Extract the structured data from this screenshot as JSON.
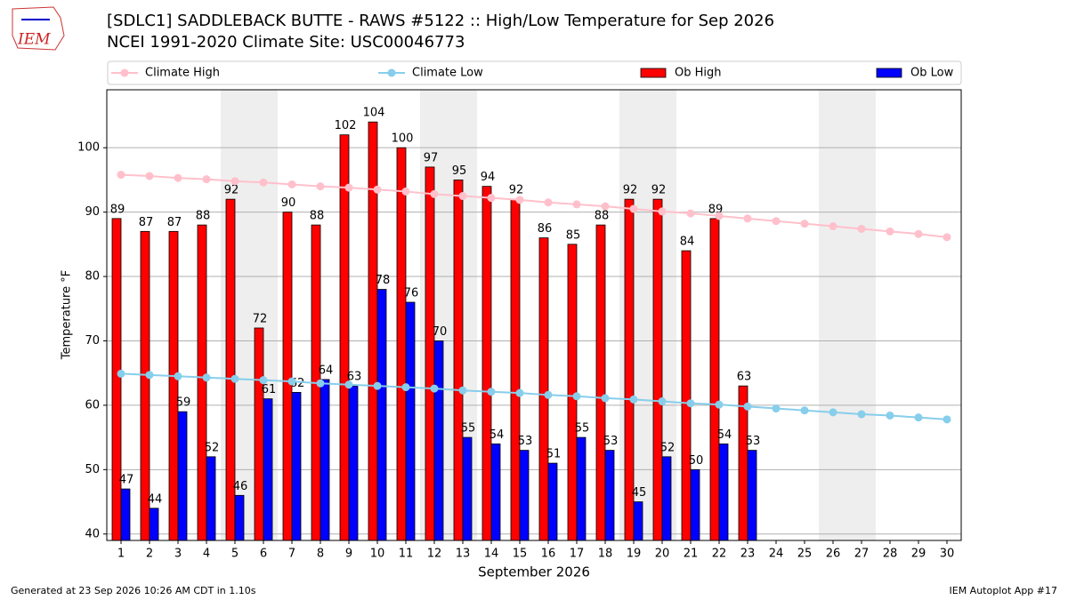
{
  "logo": "IEM",
  "chart_data": {
    "type": "bar",
    "title": "[SDLC1] SADDLEBACK BUTTE - RAWS #5122 :: High/Low Temperature for Sep 2026",
    "subtitle": "NCEI 1991-2020 Climate Site: USC00046773",
    "xlabel": "September 2026",
    "ylabel": "Temperature °F",
    "categories": [
      1,
      2,
      3,
      4,
      5,
      6,
      7,
      8,
      9,
      10,
      11,
      12,
      13,
      14,
      15,
      16,
      17,
      18,
      19,
      20,
      21,
      22,
      23,
      24,
      25,
      26,
      27,
      28,
      29,
      30
    ],
    "shaded_days": [
      5,
      6,
      12,
      13,
      19,
      20,
      26,
      27
    ],
    "shade_color": "#eeeeee",
    "series": [
      {
        "name": "Climate High",
        "kind": "line",
        "color": "#ffc0cb",
        "values": [
          95.8,
          95.6,
          95.3,
          95.1,
          94.8,
          94.6,
          94.3,
          94.0,
          93.8,
          93.5,
          93.2,
          92.8,
          92.5,
          92.2,
          91.9,
          91.5,
          91.2,
          90.9,
          90.5,
          90.1,
          89.8,
          89.4,
          89.0,
          88.6,
          88.2,
          87.8,
          87.4,
          87.0,
          86.6,
          86.1
        ]
      },
      {
        "name": "Climate Low",
        "kind": "line",
        "color": "#87ceeb",
        "values": [
          64.9,
          64.7,
          64.5,
          64.3,
          64.1,
          63.9,
          63.7,
          63.4,
          63.2,
          63.0,
          62.8,
          62.6,
          62.3,
          62.1,
          61.9,
          61.6,
          61.4,
          61.1,
          60.9,
          60.6,
          60.3,
          60.1,
          59.8,
          59.5,
          59.2,
          58.9,
          58.6,
          58.4,
          58.1,
          57.8
        ]
      },
      {
        "name": "Ob High",
        "kind": "bar",
        "color": "#ff0000",
        "values": [
          89,
          87,
          87,
          88,
          92,
          72,
          90,
          88,
          102,
          104,
          100,
          97,
          95,
          94,
          92,
          86,
          85,
          88,
          92,
          92,
          84,
          89,
          63,
          null,
          null,
          null,
          null,
          null,
          null,
          null
        ]
      },
      {
        "name": "Ob Low",
        "kind": "bar",
        "color": "#0000ff",
        "values": [
          47,
          44,
          59,
          52,
          46,
          61,
          62,
          64,
          63,
          78,
          76,
          70,
          55,
          54,
          53,
          51,
          55,
          53,
          45,
          52,
          50,
          54,
          53,
          null,
          null,
          null,
          null,
          null,
          null,
          null
        ]
      }
    ],
    "ylim": [
      39,
      109
    ],
    "yticks": [
      40,
      50,
      60,
      70,
      80,
      90,
      100
    ],
    "grid": true,
    "legend": "top",
    "footer_left": "Generated at 23 Sep 2026 10:26 AM CDT in 1.10s",
    "footer_right": "IEM Autoplot App #17"
  }
}
